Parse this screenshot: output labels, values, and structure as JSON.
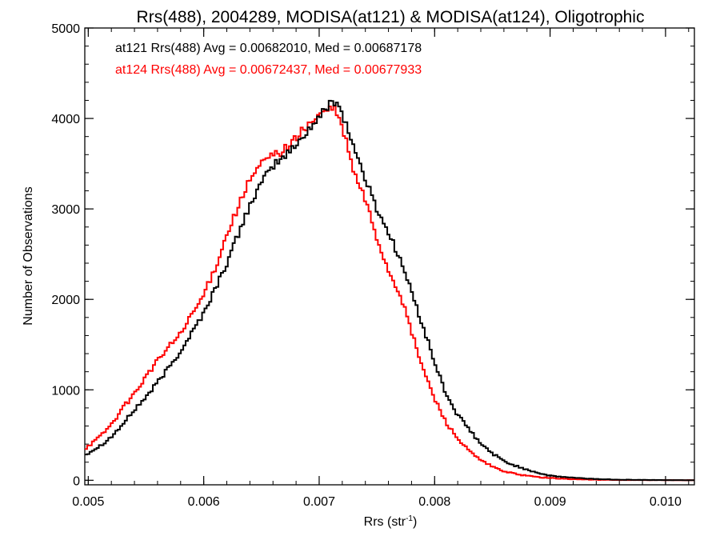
{
  "chart_data": {
    "type": "line",
    "title": "Rrs(488), 2004289, MODISA(at121) & MODISA(at124), Oligotrophic",
    "xlabel_main": "Rrs (str",
    "xlabel_sup": "-1",
    "xlabel_close": ")",
    "ylabel": "Number of Observations",
    "xlim": [
      0.00497,
      0.01025
    ],
    "ylim": [
      -50,
      5000
    ],
    "xticks": [
      0.005,
      0.006,
      0.007,
      0.008,
      0.009,
      0.01
    ],
    "xtick_labels": [
      "0.005",
      "0.006",
      "0.007",
      "0.008",
      "0.009",
      "0.010"
    ],
    "yticks": [
      0,
      1000,
      2000,
      3000,
      4000,
      5000
    ],
    "ytick_labels": [
      "0",
      "1000",
      "2000",
      "3000",
      "4000",
      "5000"
    ],
    "grid": false,
    "legend_position": "top-left",
    "series": [
      {
        "name": "at121",
        "legend_text": "at121 Rrs(488) Avg = 0.00682010, Med = 0.00687178",
        "color": "#000000",
        "x": [
          0.00497,
          0.0051,
          0.0052,
          0.0053,
          0.0054,
          0.0055,
          0.0056,
          0.0057,
          0.0058,
          0.0059,
          0.006,
          0.0061,
          0.0062,
          0.0063,
          0.0064,
          0.0065,
          0.0066,
          0.00667,
          0.0068,
          0.0069,
          0.007,
          0.00705,
          0.0071,
          0.00715,
          0.0072,
          0.00725,
          0.0073,
          0.0074,
          0.0075,
          0.0076,
          0.0077,
          0.0078,
          0.0079,
          0.008,
          0.0081,
          0.0082,
          0.0083,
          0.0084,
          0.0085,
          0.0086,
          0.0087,
          0.0088,
          0.0089,
          0.009,
          0.0091,
          0.0092,
          0.0093,
          0.0094,
          0.0095,
          0.0096,
          0.0098,
          0.01,
          0.01025
        ],
        "y": [
          280,
          380,
          480,
          620,
          780,
          920,
          1080,
          1250,
          1430,
          1640,
          1850,
          2120,
          2400,
          2720,
          3050,
          3280,
          3480,
          3550,
          3700,
          3870,
          4000,
          4100,
          4180,
          4200,
          4050,
          3880,
          3680,
          3330,
          3000,
          2740,
          2450,
          2080,
          1700,
          1300,
          950,
          720,
          560,
          400,
          300,
          210,
          160,
          120,
          80,
          50,
          38,
          28,
          20,
          14,
          10,
          7,
          4,
          2,
          1
        ]
      },
      {
        "name": "at124",
        "legend_text": "at124 Rrs(488) Avg = 0.00672437, Med = 0.00677933",
        "color": "#ff0000",
        "x": [
          0.00497,
          0.0051,
          0.0052,
          0.0053,
          0.0054,
          0.0055,
          0.0056,
          0.0057,
          0.0058,
          0.0059,
          0.006,
          0.0061,
          0.0062,
          0.0063,
          0.0064,
          0.0065,
          0.0066,
          0.00667,
          0.0068,
          0.0069,
          0.007,
          0.00705,
          0.0071,
          0.00715,
          0.0072,
          0.00725,
          0.0073,
          0.0074,
          0.0075,
          0.0076,
          0.0077,
          0.0078,
          0.0079,
          0.008,
          0.0081,
          0.0082,
          0.0083,
          0.0084,
          0.0085,
          0.0086,
          0.0087,
          0.0088,
          0.0089,
          0.009,
          0.0091,
          0.0092,
          0.0093,
          0.0094,
          0.0095,
          0.0096,
          0.0098,
          0.01,
          0.01025
        ],
        "y": [
          350,
          480,
          620,
          800,
          960,
          1150,
          1320,
          1480,
          1620,
          1830,
          2050,
          2350,
          2720,
          3030,
          3320,
          3500,
          3600,
          3630,
          3780,
          3930,
          4030,
          4080,
          4110,
          4080,
          3880,
          3680,
          3400,
          3100,
          2680,
          2320,
          2060,
          1640,
          1230,
          900,
          640,
          460,
          320,
          220,
          150,
          100,
          70,
          50,
          35,
          25,
          18,
          12,
          9,
          6,
          4,
          3,
          2,
          1,
          1
        ]
      }
    ]
  }
}
